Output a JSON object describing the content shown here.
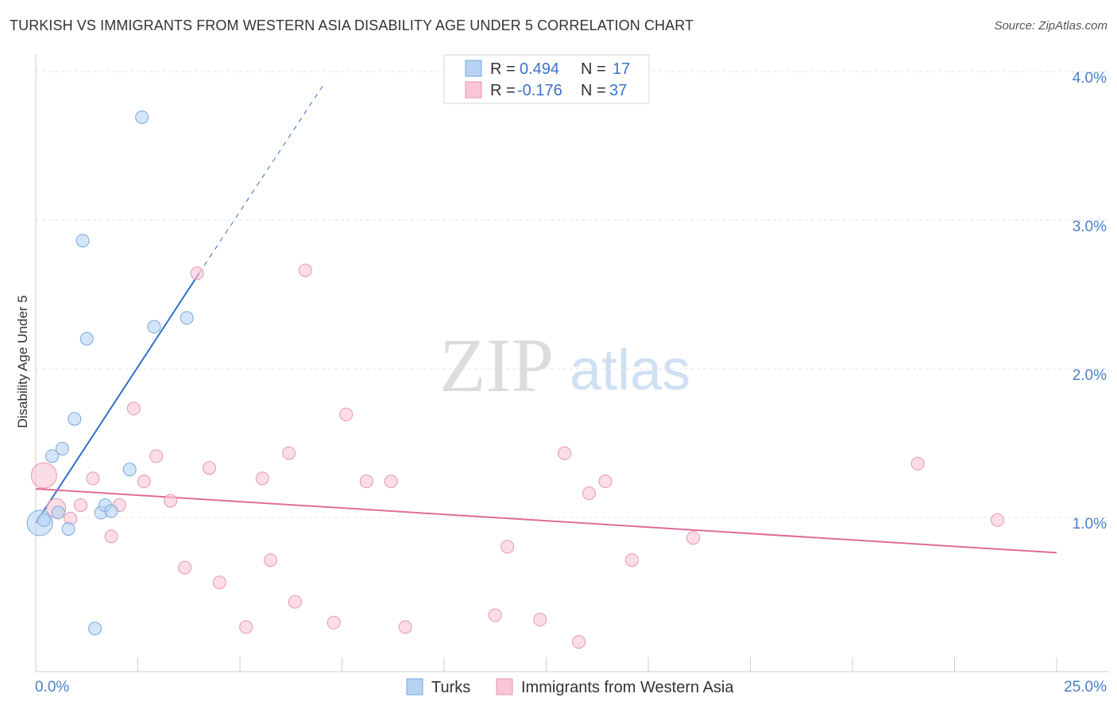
{
  "title": "TURKISH VS IMMIGRANTS FROM WESTERN ASIA DISABILITY AGE UNDER 5 CORRELATION CHART",
  "source": "Source: ZipAtlas.com",
  "watermark": {
    "zip": "ZIP",
    "atlas": "atlas"
  },
  "colors": {
    "turks_fill": "#b8d3f2",
    "turks_stroke": "#7aa7dc",
    "turks_line": "#2f6fc9",
    "wa_fill": "#f8c6d5",
    "wa_stroke": "#e896b2",
    "wa_line": "#e06b97"
  },
  "legend": {
    "r_label": "R =",
    "n_label": "N =",
    "turks": {
      "r": "0.494",
      "n": "17"
    },
    "wa": {
      "r": "-0.176",
      "n": "37"
    }
  },
  "chart_data": {
    "type": "scatter",
    "title": "TURKISH VS IMMIGRANTS FROM WESTERN ASIA DISABILITY AGE UNDER 5 CORRELATION CHART",
    "xlabel": "",
    "ylabel": "Disability Age Under 5",
    "xlim": [
      0,
      25
    ],
    "ylim": [
      0,
      4.0
    ],
    "x_tick_labels": [
      "0.0%",
      "25.0%"
    ],
    "y_ticks": [
      1.0,
      2.0,
      3.0,
      4.0
    ],
    "y_tick_labels": [
      "1.0%",
      "2.0%",
      "3.0%",
      "4.0%"
    ],
    "grid": true,
    "legend_position": "top-center",
    "series": [
      {
        "name": "Turks",
        "points": [
          {
            "x": 0.1,
            "y": 1.0,
            "s": 2
          },
          {
            "x": 0.2,
            "y": 1.02,
            "s": 1
          },
          {
            "x": 0.4,
            "y": 1.45,
            "s": 1
          },
          {
            "x": 0.55,
            "y": 1.07,
            "s": 1
          },
          {
            "x": 0.65,
            "y": 1.5,
            "s": 1
          },
          {
            "x": 0.8,
            "y": 0.96,
            "s": 1
          },
          {
            "x": 0.95,
            "y": 1.7,
            "s": 1
          },
          {
            "x": 1.15,
            "y": 2.9,
            "s": 1
          },
          {
            "x": 1.25,
            "y": 2.24,
            "s": 1
          },
          {
            "x": 1.45,
            "y": 0.29,
            "s": 1
          },
          {
            "x": 1.6,
            "y": 1.07,
            "s": 1
          },
          {
            "x": 1.7,
            "y": 1.12,
            "s": 1
          },
          {
            "x": 1.85,
            "y": 1.08,
            "s": 1
          },
          {
            "x": 2.3,
            "y": 1.36,
            "s": 1
          },
          {
            "x": 2.6,
            "y": 3.73,
            "s": 1
          },
          {
            "x": 2.9,
            "y": 2.32,
            "s": 1
          },
          {
            "x": 3.7,
            "y": 2.38,
            "s": 1
          }
        ],
        "trend": {
          "x1": 0.0,
          "y1": 1.0,
          "x2": 4.0,
          "y2": 2.68,
          "dash_to_x": 7.05,
          "dash_to_y": 3.95
        }
      },
      {
        "name": "Immigrants from Western Asia",
        "points": [
          {
            "x": 0.2,
            "y": 1.32,
            "s": 2
          },
          {
            "x": 0.5,
            "y": 1.1,
            "s": 1.5
          },
          {
            "x": 0.85,
            "y": 1.03,
            "s": 1
          },
          {
            "x": 1.1,
            "y": 1.12,
            "s": 1
          },
          {
            "x": 1.4,
            "y": 1.3,
            "s": 1
          },
          {
            "x": 1.85,
            "y": 0.91,
            "s": 1
          },
          {
            "x": 2.05,
            "y": 1.12,
            "s": 1
          },
          {
            "x": 2.4,
            "y": 1.77,
            "s": 1
          },
          {
            "x": 2.65,
            "y": 1.28,
            "s": 1
          },
          {
            "x": 2.95,
            "y": 1.45,
            "s": 1
          },
          {
            "x": 3.3,
            "y": 1.15,
            "s": 1
          },
          {
            "x": 3.65,
            "y": 0.7,
            "s": 1
          },
          {
            "x": 3.95,
            "y": 2.68,
            "s": 1
          },
          {
            "x": 4.25,
            "y": 1.37,
            "s": 1
          },
          {
            "x": 4.5,
            "y": 0.6,
            "s": 1
          },
          {
            "x": 5.15,
            "y": 0.3,
            "s": 1
          },
          {
            "x": 5.55,
            "y": 1.3,
            "s": 1
          },
          {
            "x": 5.75,
            "y": 0.75,
            "s": 1
          },
          {
            "x": 6.2,
            "y": 1.47,
            "s": 1
          },
          {
            "x": 6.35,
            "y": 0.47,
            "s": 1
          },
          {
            "x": 6.6,
            "y": 2.7,
            "s": 1
          },
          {
            "x": 7.3,
            "y": 0.33,
            "s": 1
          },
          {
            "x": 7.6,
            "y": 1.73,
            "s": 1
          },
          {
            "x": 8.1,
            "y": 1.28,
            "s": 1
          },
          {
            "x": 8.7,
            "y": 1.28,
            "s": 1
          },
          {
            "x": 9.05,
            "y": 0.3,
            "s": 1
          },
          {
            "x": 11.25,
            "y": 0.38,
            "s": 1
          },
          {
            "x": 11.55,
            "y": 0.84,
            "s": 1
          },
          {
            "x": 12.35,
            "y": 0.35,
            "s": 1
          },
          {
            "x": 12.95,
            "y": 1.47,
            "s": 1
          },
          {
            "x": 13.3,
            "y": 0.2,
            "s": 1
          },
          {
            "x": 13.55,
            "y": 1.2,
            "s": 1
          },
          {
            "x": 13.95,
            "y": 1.28,
            "s": 1
          },
          {
            "x": 14.6,
            "y": 0.75,
            "s": 1
          },
          {
            "x": 16.1,
            "y": 0.9,
            "s": 1
          },
          {
            "x": 21.6,
            "y": 1.4,
            "s": 1
          },
          {
            "x": 23.55,
            "y": 1.02,
            "s": 1
          }
        ],
        "trend": {
          "x1": 0.0,
          "y1": 1.23,
          "x2": 25.0,
          "y2": 0.8
        }
      }
    ]
  },
  "bottom_legend": {
    "turks": "Turks",
    "wa": "Immigrants from Western Asia"
  }
}
